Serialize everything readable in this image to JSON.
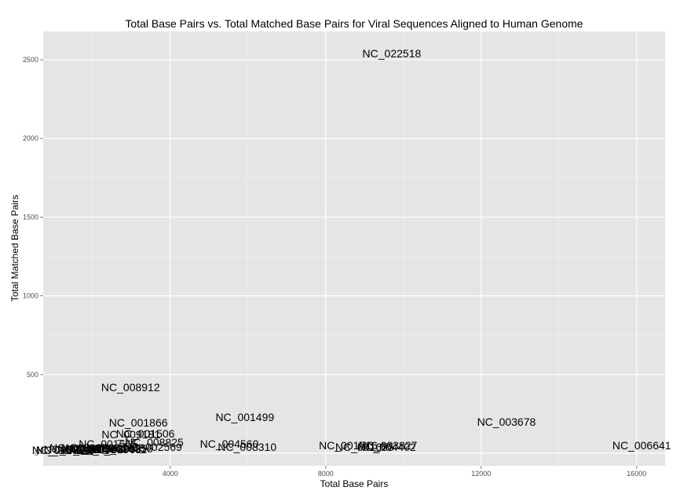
{
  "chart_data": {
    "type": "scatter",
    "title": "Total Base Pairs vs. Total Matched Base Pairs for Viral Sequences Aligned to Human Genome",
    "xlabel": "Total Base Pairs",
    "ylabel": "Total Matched Base Pairs",
    "xlim": [
      732,
      16732
    ],
    "ylim": [
      -80,
      2680
    ],
    "x_ticks": [
      4000,
      8000,
      12000,
      16000
    ],
    "y_ticks": [
      0,
      500,
      1000,
      1500,
      2000,
      2500
    ],
    "grid": true,
    "background": "#e5e5e5",
    "point_style": "text-labels",
    "points": [
      {
        "label": "NC_022518",
        "x": 9700,
        "y": 2540
      },
      {
        "label": "NC_008912",
        "x": 2980,
        "y": 420
      },
      {
        "label": "NC_001499",
        "x": 5920,
        "y": 230
      },
      {
        "label": "NC_003678",
        "x": 12650,
        "y": 200
      },
      {
        "label": "NC_001866",
        "x": 3180,
        "y": 195
      },
      {
        "label": "NC_001506",
        "x": 3360,
        "y": 125
      },
      {
        "label": "NC_009181",
        "x": 2990,
        "y": 120
      },
      {
        "label": "NC_008825",
        "x": 3590,
        "y": 70
      },
      {
        "label": "NC_004560",
        "x": 5520,
        "y": 60
      },
      {
        "label": "NC_001665",
        "x": 2400,
        "y": 60
      },
      {
        "label": "NC_003827",
        "x": 9600,
        "y": 50
      },
      {
        "label": "NC_006641",
        "x": 16130,
        "y": 50
      },
      {
        "label": "NC_001716",
        "x": 8580,
        "y": 50
      },
      {
        "label": "NC_002569",
        "x": 3550,
        "y": 40
      },
      {
        "label": "NC_001655",
        "x": 9000,
        "y": 40
      },
      {
        "label": "NC_004402",
        "x": 9570,
        "y": 40
      },
      {
        "label": "NC_008310",
        "x": 5980,
        "y": 40
      },
      {
        "label": "NC_001366",
        "x": 2600,
        "y": 35
      },
      {
        "label": "NC_007020",
        "x": 2200,
        "y": 30
      },
      {
        "label": "NC_002078",
        "x": 1850,
        "y": 25
      },
      {
        "label": "NC_001422",
        "x": 1500,
        "y": 25
      },
      {
        "label": "NC_005883",
        "x": 1200,
        "y": 20
      },
      {
        "label": "NC_004015",
        "x": 1300,
        "y": 20
      },
      {
        "label": "NC_001543",
        "x": 2050,
        "y": 30
      },
      {
        "label": "NC_006270",
        "x": 2350,
        "y": 25
      },
      {
        "label": "NC_003461",
        "x": 2650,
        "y": 25
      },
      {
        "label": "NC_010356",
        "x": 2800,
        "y": 30
      },
      {
        "label": "NC_004763",
        "x": 1950,
        "y": 35
      },
      {
        "label": "NC_002169",
        "x": 1650,
        "y": 35
      }
    ]
  }
}
